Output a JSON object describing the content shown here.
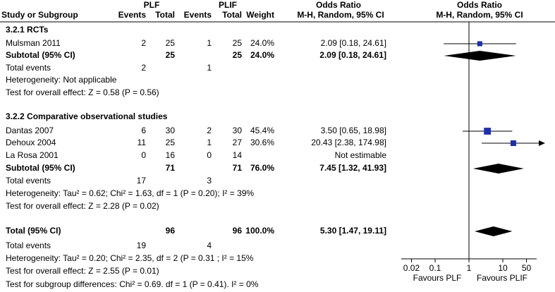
{
  "chart_data": {
    "type": "forest",
    "group_labels": [
      "PLF",
      "PLIF"
    ],
    "or_titles": [
      "Odds Ratio",
      "Odds Ratio"
    ],
    "columns": [
      "Study or Subgroup",
      "Events",
      "Total",
      "Events",
      "Total",
      "Weight",
      "M-H, Random, 95% CI",
      "M-H, Random, 95% CI"
    ],
    "log_scale": true,
    "xlim": [
      0.01,
      100
    ],
    "xticks": [
      0.02,
      0.1,
      1,
      10,
      50
    ],
    "reference": 1,
    "x_labels": [
      "Favours PLF",
      "Favours PLIF"
    ],
    "marker_color": "#1f2fa8",
    "rows": [
      {
        "label": "3.2.1 RCTs",
        "bold": true
      },
      {
        "label": "Mulsman 2011",
        "events1": 2,
        "total1": 25,
        "events2": 1,
        "total2": 25,
        "weight": 24.0,
        "weight_label": "24.0%",
        "or": 2.09,
        "ci": [
          0.18,
          24.61
        ],
        "value_label": "2.09 [0.18, 24.61]",
        "marker": "square"
      },
      {
        "label": "Subtotal (95% CI)",
        "bold": true,
        "total1": 25,
        "total2": 25,
        "weight": 24.0,
        "weight_label": "24.0%",
        "or": 2.09,
        "ci": [
          0.18,
          24.61
        ],
        "value_label": "2.09 [0.18, 24.61]",
        "marker": "diamond"
      },
      {
        "label": "Total events",
        "events1": 2,
        "events2": 1
      },
      {
        "label": "Heterogeneity: Not applicable"
      },
      {
        "label": "Test for overall effect: Z = 0.58 (P = 0.56)"
      },
      {
        "label": "3.2.2 Comparative observational studies",
        "bold": true
      },
      {
        "label": "Dantas 2007",
        "events1": 6,
        "total1": 30,
        "events2": 2,
        "total2": 30,
        "weight": 45.4,
        "weight_label": "45.4%",
        "or": 3.5,
        "ci": [
          0.65,
          18.98
        ],
        "value_label": "3.50 [0.65, 18.98]",
        "marker": "square"
      },
      {
        "label": "Dehoux 2004",
        "events1": 11,
        "total1": 25,
        "events2": 1,
        "total2": 27,
        "weight": 30.6,
        "weight_label": "30.6%",
        "or": 20.43,
        "ci": [
          2.38,
          174.98
        ],
        "value_label": "20.43 [2.38, 174.98]",
        "marker": "square"
      },
      {
        "label": "La Rosa 2001",
        "events1": 0,
        "total1": 16,
        "events2": 0,
        "total2": 14,
        "value_label": "Not estimable"
      },
      {
        "label": "Subtotal (95% CI)",
        "bold": true,
        "total1": 71,
        "total2": 71,
        "weight": 76.0,
        "weight_label": "76.0%",
        "or": 7.45,
        "ci": [
          1.32,
          41.93
        ],
        "value_label": "7.45 [1.32, 41.93]",
        "marker": "diamond"
      },
      {
        "label": "Total events",
        "events1": 17,
        "events2": 3
      },
      {
        "label": "Heterogeneity: Tau² = 0.62; Chi² = 1.63, df = 1 (P = 0.20); I² = 39%"
      },
      {
        "label": "Test for overall effect: Z = 2.28 (P = 0.02)"
      },
      {
        "label": "Total (95% CI)",
        "bold": true,
        "total1": 96,
        "total2": 96,
        "weight": 100.0,
        "weight_label": "100.0%",
        "or": 5.3,
        "ci": [
          1.47,
          19.11
        ],
        "value_label": "5.30 [1.47, 19.11]",
        "marker": "diamond"
      },
      {
        "label": "Total events",
        "events1": 19,
        "events2": 4
      },
      {
        "label": "Heterogeneity: Tau² = 0.20; Chi² = 2.35, df = 2 (P = 0.31 ; I² = 15%"
      },
      {
        "label": "Test for overall effect: Z = 2.55 (P = 0.01)"
      },
      {
        "label": "Test for subgroup differences: Chi² = 0.69. df = 1 (P = 0.41). I² = 0%"
      }
    ]
  }
}
